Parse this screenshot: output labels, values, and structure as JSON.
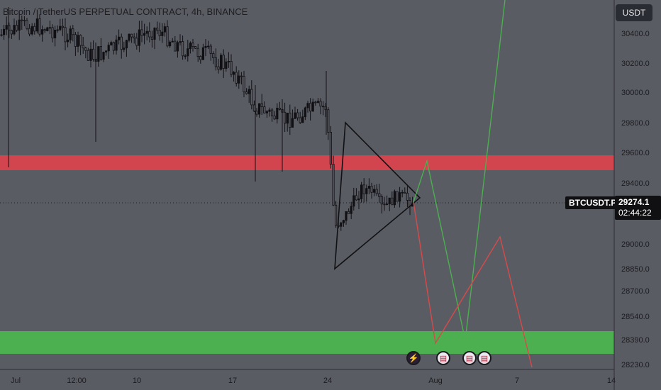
{
  "title": "Bitcoin / TetherUS PERPETUAL CONTRACT, 4h, BINANCE",
  "currency_button": "USDT",
  "symbol_tag": "BTCUSDT.P",
  "price_tag": {
    "price": "29274.1",
    "countdown": "02:44:22"
  },
  "colors": {
    "background": "#5a5c64",
    "resistance": "#d2444e",
    "support": "#4caf50",
    "bull_path": "#4caf50",
    "bear_path": "#d84a4a",
    "candle": "#111114"
  },
  "event_icons": [
    "lightning-icon",
    "us-flag-icon",
    "us-flag-icon",
    "us-flag-icon"
  ],
  "chart_data": {
    "type": "candlestick",
    "y_axis": {
      "ticks": [
        "30400.0",
        "30200.0",
        "30000.0",
        "29800.0",
        "29600.0",
        "29400.0",
        "29000.0",
        "28850.0",
        "28700.0",
        "28540.0",
        "28390.0",
        "28230.0"
      ],
      "ylim": [
        28230,
        30400
      ]
    },
    "x_axis": {
      "ticks": [
        "Jul",
        "12:00",
        "10",
        "17",
        "24",
        "Aug",
        "7",
        "14"
      ]
    },
    "last_price": 29274.1,
    "zones": [
      {
        "name": "resistance",
        "from": 29500,
        "to": 29590
      },
      {
        "name": "support",
        "from": 28250,
        "to": 28400
      }
    ],
    "triangle_pattern": [
      [
        "Jul 24",
        29790
      ],
      [
        "Jul 24",
        28830
      ],
      [
        "Jul 30",
        29290
      ]
    ],
    "projections": [
      {
        "name": "bullish",
        "points": [
          [
            "Jul 30",
            29250
          ],
          [
            "Aug 1",
            29540
          ],
          [
            "Aug 3",
            28390
          ],
          [
            "Aug 6",
            30700
          ]
        ]
      },
      {
        "name": "bearish",
        "points": [
          [
            "Jul 30",
            29250
          ],
          [
            "Aug 2",
            28360
          ],
          [
            "Aug 5",
            29050
          ],
          [
            "Aug 7",
            28230
          ]
        ]
      }
    ]
  }
}
